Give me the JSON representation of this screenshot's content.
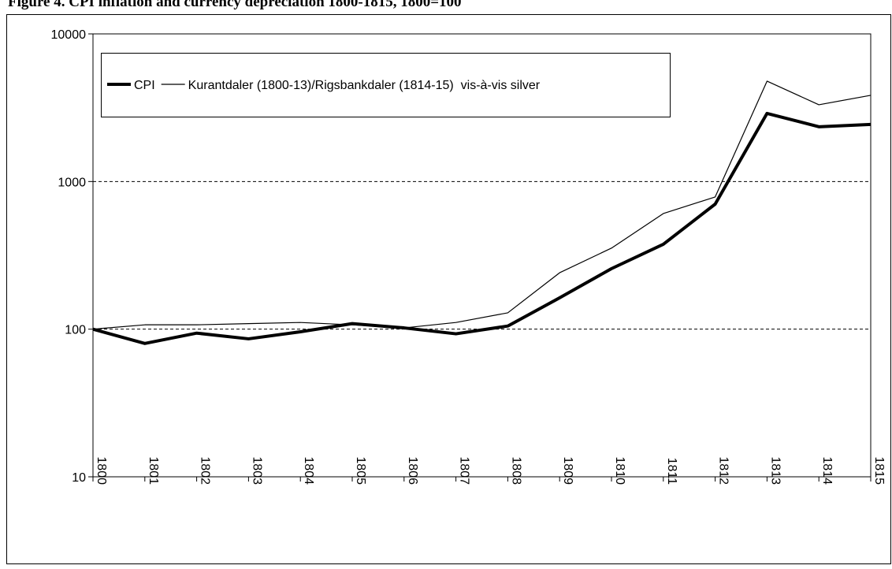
{
  "chart_data": {
    "type": "line",
    "title": "Figure 4. CPI inflation and currency depreciation 1800-1815, 1800=100",
    "x": [
      1800,
      1801,
      1802,
      1803,
      1804,
      1805,
      1806,
      1807,
      1808,
      1809,
      1810,
      1811,
      1812,
      1813,
      1814,
      1815
    ],
    "xlim": [
      1800,
      1815
    ],
    "xticks": [
      1800,
      1801,
      1802,
      1803,
      1804,
      1805,
      1806,
      1807,
      1808,
      1809,
      1810,
      1811,
      1812,
      1813,
      1814,
      1815
    ],
    "ylim": [
      10,
      10000
    ],
    "yticks": [
      10,
      100,
      1000,
      10000
    ],
    "log_scale": true,
    "grid": true,
    "legend": "top-left",
    "series": [
      {
        "name": "CPI",
        "color": "#000000",
        "values": [
          100,
          80,
          94,
          86,
          96,
          109,
          102,
          93,
          105,
          163,
          257,
          376,
          703,
          2893,
          2350,
          2437
        ]
      },
      {
        "name": "Kurantdaler (1800-13)/Rigsbankdaler (1814-15)  vis-à-vis silver",
        "color": "#000000",
        "values": [
          100,
          107,
          107,
          109,
          111,
          107,
          102,
          111,
          129,
          241,
          354,
          607,
          786,
          4786,
          3311,
          3837
        ]
      }
    ]
  }
}
